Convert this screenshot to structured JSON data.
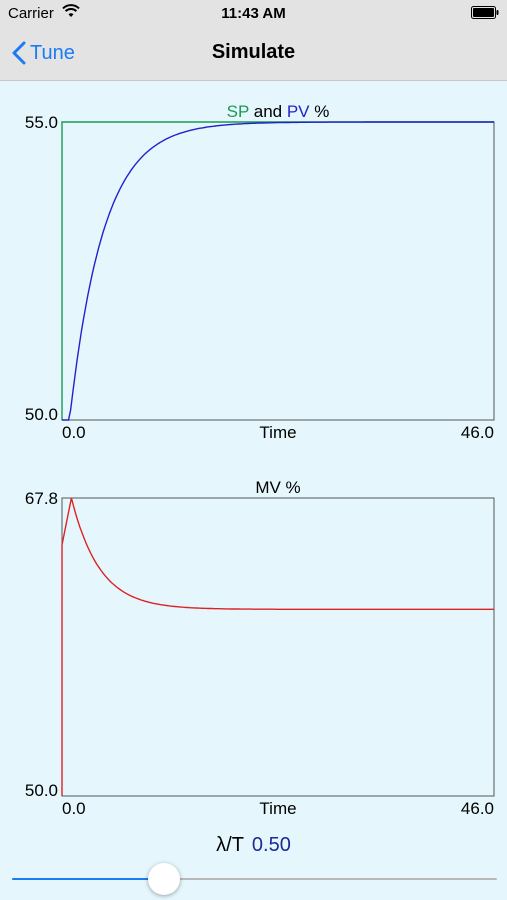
{
  "status": {
    "carrier": "Carrier",
    "time": "11:43 AM"
  },
  "nav": {
    "back_label": "Tune",
    "title": "Simulate"
  },
  "charts": [
    {
      "title_parts": [
        {
          "text": "SP",
          "color": "#1a9a50"
        },
        {
          "text": " and ",
          "color": "#000000"
        },
        {
          "text": "PV",
          "color": "#2222cc"
        },
        {
          "text": " %",
          "color": "#000000"
        }
      ],
      "xlabel": "Time",
      "x_min_label": "0.0",
      "x_max_label": "46.0",
      "y_min_label": "50.0",
      "y_max_label": "55.0"
    },
    {
      "title_parts": [
        {
          "text": "MV %",
          "color": "#000000"
        }
      ],
      "xlabel": "Time",
      "x_min_label": "0.0",
      "x_max_label": "46.0",
      "y_min_label": "50.0",
      "y_max_label": "67.8"
    }
  ],
  "chart_data": [
    {
      "type": "line",
      "title": "SP and PV %",
      "xlabel": "Time",
      "xlim": [
        0,
        46
      ],
      "ylim": [
        50,
        55
      ],
      "series": [
        {
          "name": "SP",
          "color": "#1a9a50",
          "x": [
            0,
            0,
            0.5,
            46
          ],
          "y": [
            50,
            55,
            55,
            55
          ]
        },
        {
          "name": "PV",
          "color": "#2222cc",
          "x": [
            0.8,
            2,
            3,
            4,
            5,
            6,
            8,
            10,
            12,
            15,
            18,
            22,
            46
          ],
          "y": [
            50,
            51.7,
            52.8,
            53.5,
            54.0,
            54.3,
            54.65,
            54.82,
            54.91,
            54.97,
            54.99,
            55.0,
            55.0
          ]
        }
      ]
    },
    {
      "type": "line",
      "title": "MV %",
      "xlabel": "Time",
      "xlim": [
        0,
        46
      ],
      "ylim": [
        50,
        67.8
      ],
      "series": [
        {
          "name": "MV",
          "color": "#dd2222",
          "x": [
            0,
            0,
            1,
            2,
            3,
            4,
            5,
            6,
            7,
            8,
            10,
            12,
            15,
            20,
            46
          ],
          "y": [
            50,
            65.0,
            67.8,
            66.9,
            65.6,
            64.4,
            63.4,
            62.7,
            62.2,
            61.9,
            61.5,
            61.3,
            61.2,
            61.15,
            61.15
          ]
        }
      ]
    }
  ],
  "slider": {
    "label": "λ/T",
    "value_text": "0.50",
    "fraction": 0.3
  }
}
